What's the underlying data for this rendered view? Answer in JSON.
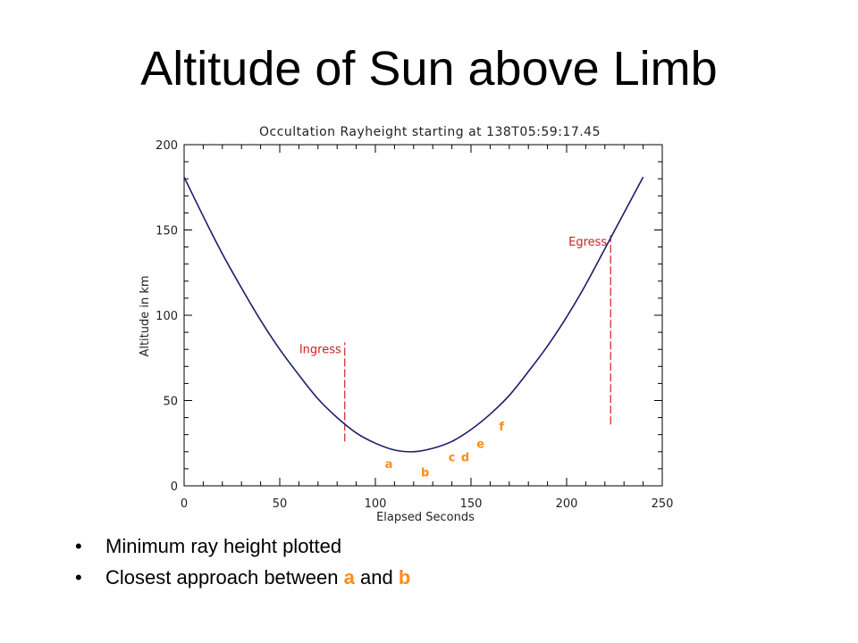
{
  "slide": {
    "title": "Altitude of Sun above Limb",
    "bullets": [
      {
        "text": "Minimum ray height plotted"
      },
      {
        "pre": "Closest approach between ",
        "a": "a",
        "mid": " and ",
        "b": "b"
      }
    ],
    "bullet_char": "•",
    "highlight_color": "#FF8C1A"
  },
  "chart_data": {
    "type": "line",
    "title": "Occultation Rayheight starting at 138T05:59:17.45",
    "xlabel": "Elapsed Seconds",
    "ylabel": "Altitude in km",
    "xlim": [
      0,
      250
    ],
    "ylim": [
      0,
      200
    ],
    "xticks": [
      0,
      50,
      100,
      150,
      200,
      250
    ],
    "yticks": [
      0,
      50,
      100,
      150,
      200
    ],
    "grid": false,
    "series": [
      {
        "color": "#1C1C6E",
        "x": [
          0,
          10,
          20,
          30,
          40,
          50,
          60,
          70,
          80,
          90,
          100,
          110,
          120,
          130,
          140,
          150,
          160,
          170,
          180,
          190,
          200,
          210,
          220,
          230,
          240
        ],
        "y": [
          181,
          158,
          136,
          116,
          97,
          80,
          65,
          51,
          40,
          31,
          25,
          21,
          20,
          22,
          26,
          33,
          42,
          53,
          67,
          82,
          99,
          118,
          139,
          160,
          181
        ]
      }
    ],
    "events": [
      {
        "label": "Ingress",
        "x": 84,
        "y_range": [
          26,
          84
        ],
        "color": "#CC2020",
        "label_side": "left"
      },
      {
        "label": "Egress",
        "x": 223,
        "y_range": [
          36,
          147
        ],
        "color": "#CC2020",
        "label_side": "left"
      }
    ],
    "markers": [
      {
        "label": "a",
        "x": 107,
        "y": 13
      },
      {
        "label": "b",
        "x": 126,
        "y": 8
      },
      {
        "label": "c",
        "x": 140,
        "y": 17
      },
      {
        "label": "d",
        "x": 147,
        "y": 17
      },
      {
        "label": "e",
        "x": 155,
        "y": 25
      },
      {
        "label": "f",
        "x": 166,
        "y": 35
      }
    ],
    "marker_color": "#FF8C1A"
  }
}
